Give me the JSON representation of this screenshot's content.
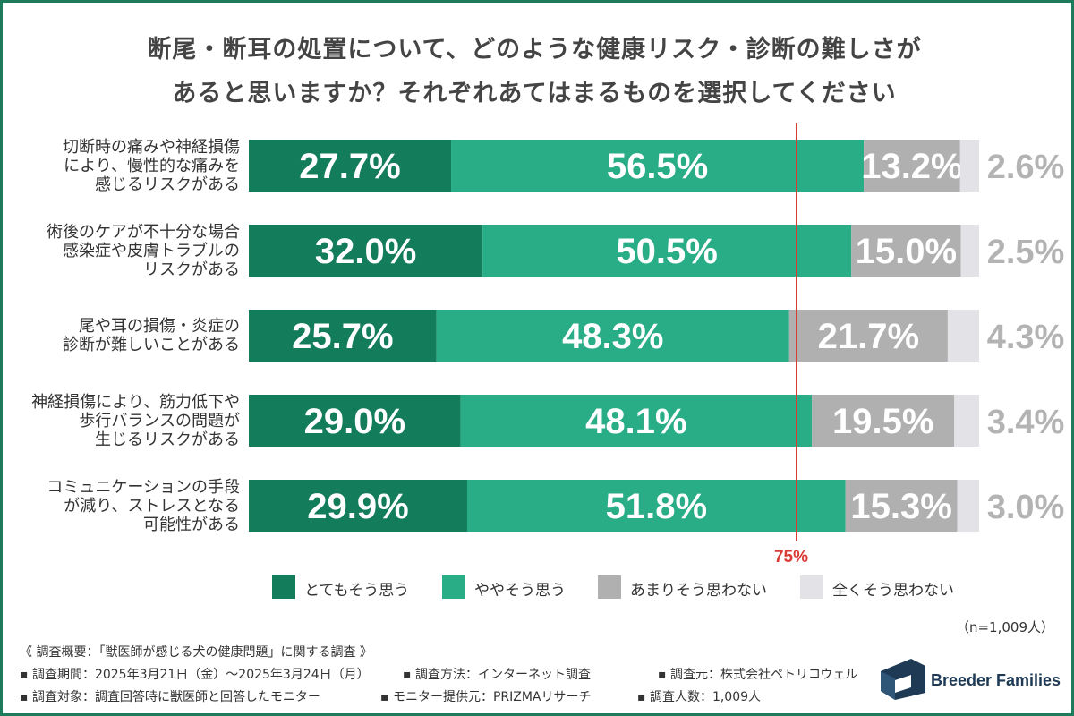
{
  "chart_data": {
    "type": "bar",
    "orientation": "horizontal-stacked-100",
    "title_lines": [
      "断尾・断耳の処置について、どのような健康リスク・診断の難しさが",
      "あると思いますか？それぞれあてはまるものを選択してください"
    ],
    "categories": [
      [
        "切断時の痛みや神経損傷",
        "により、慢性的な痛みを",
        "感じるリスクがある"
      ],
      [
        "術後のケアが不十分な場合",
        "感染症や皮膚トラブルの",
        "リスクがある"
      ],
      [
        "尾や耳の損傷・炎症の",
        "診断が難しいことがある"
      ],
      [
        "神経損傷により、筋力低下や",
        "歩行バランスの問題が",
        "生じるリスクがある"
      ],
      [
        "コミュニケーションの手段",
        "が減り、ストレスとなる",
        "可能性がある"
      ]
    ],
    "series": [
      {
        "name": "とてもそう思う",
        "color": "#137c5b",
        "values": [
          27.7,
          32.0,
          25.7,
          29.0,
          29.9
        ],
        "labels": [
          "27.7%",
          "32.0%",
          "25.7%",
          "29.0%",
          "29.9%"
        ]
      },
      {
        "name": "ややそう思う",
        "color": "#28ad87",
        "values": [
          56.5,
          50.5,
          48.3,
          48.1,
          51.8
        ],
        "labels": [
          "56.5%",
          "50.5%",
          "48.3%",
          "48.1%",
          "51.8%"
        ]
      },
      {
        "name": "あまりそう思わない",
        "color": "#b0b0b0",
        "values": [
          13.2,
          15.0,
          21.7,
          19.5,
          15.3
        ],
        "labels": [
          "13.2%",
          "15.0%",
          "21.7%",
          "19.5%",
          "15.3%"
        ]
      },
      {
        "name": "全くそう思わない",
        "color": "#e3e2e6",
        "values": [
          2.6,
          2.5,
          4.3,
          3.4,
          3.0
        ],
        "labels": [
          "2.6%",
          "2.5%",
          "4.3%",
          "3.4%",
          "3.0%"
        ]
      }
    ],
    "outside_label_color": "#b3b3b3",
    "reference_line": {
      "value": 75,
      "label": "75%",
      "color": "#d93b35"
    },
    "xlim": [
      0,
      100
    ]
  },
  "sample_note": "（n=1,009人）",
  "footer": {
    "survey_title": "《 調査概要：「獣医師が感じる犬の健康問題」に関する調査 》",
    "period": "▪ 調査期間：2025年3月21日（金）〜2025年3月24日（月）",
    "method": "▪ 調査方法：インターネット調査",
    "source": "▪ 調査元：株式会社ペトリコウェル",
    "target": "▪ 調査対象：調査回答時に獣医師と回答したモニター",
    "provider": "▪ モニター提供元：PRIZMAリサーチ",
    "count": "▪ 調査人数：1,009人"
  },
  "logo": {
    "text": "Breeder Families",
    "color": "#1e3a55"
  },
  "colors": {
    "frame": "#1f7a5c",
    "title": "#444444"
  }
}
